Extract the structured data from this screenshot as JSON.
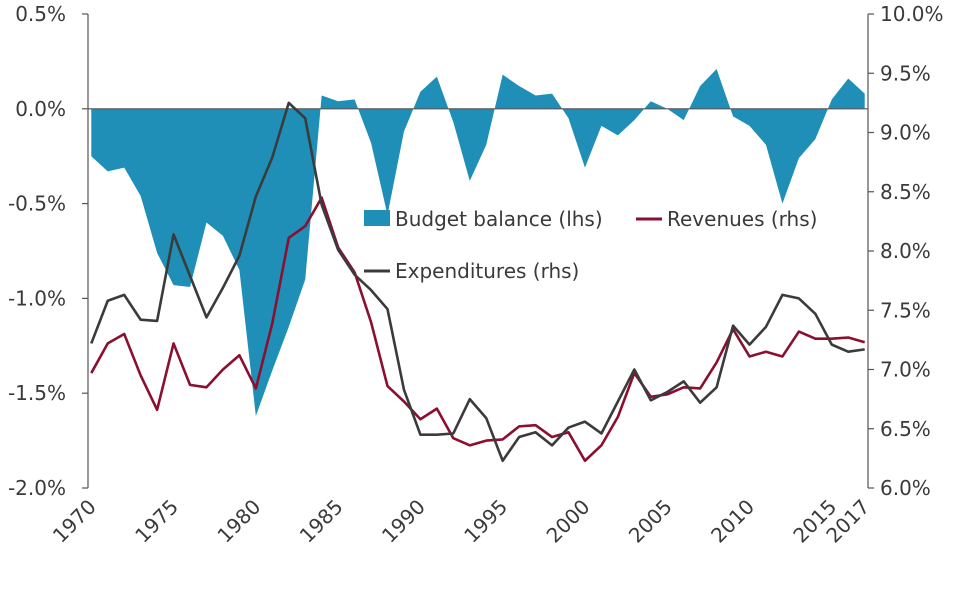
{
  "chart_data": {
    "type": "area+line",
    "title": "",
    "x_label": "",
    "left_axis": {
      "label": "",
      "min": -2.0,
      "max": 0.5,
      "ticks": [
        "0.5%",
        "0.0%",
        "-0.5%",
        "-1.0%",
        "-1.5%",
        "-2.0%"
      ],
      "tick_values": [
        0.5,
        0.0,
        -0.5,
        -1.0,
        -1.5,
        -2.0
      ]
    },
    "right_axis": {
      "label": "",
      "min": 6.0,
      "max": 10.0,
      "ticks": [
        "10.0%",
        "9.5%",
        "9.0%",
        "8.5%",
        "8.0%",
        "7.5%",
        "7.0%",
        "6.5%",
        "6.0%"
      ],
      "tick_values": [
        10.0,
        9.5,
        9.0,
        8.5,
        8.0,
        7.5,
        7.0,
        6.5,
        6.0
      ]
    },
    "x_ticks": [
      "1970",
      "1975",
      "1980",
      "1985",
      "1990",
      "1995",
      "2000",
      "2005",
      "2010",
      "2015",
      "2017"
    ],
    "x_tick_values": [
      1970,
      1975,
      1980,
      1985,
      1990,
      1995,
      2000,
      2005,
      2010,
      2015,
      2017
    ],
    "x_range": [
      1969.8,
      2017.2
    ],
    "legend": {
      "budget": "Budget balance (lhs)",
      "revenues": "Revenues (rhs)",
      "expenditures": "Expenditures (rhs)"
    },
    "colors": {
      "budget": "#1f8fb8",
      "revenues": "#8b0f2f",
      "expenditures": "#3b3b3b",
      "axis": "#555555"
    },
    "years": [
      1970,
      1971,
      1972,
      1973,
      1974,
      1975,
      1976,
      1977,
      1978,
      1979,
      1980,
      1981,
      1982,
      1983,
      1984,
      1985,
      1986,
      1987,
      1988,
      1989,
      1990,
      1991,
      1992,
      1993,
      1994,
      1995,
      1996,
      1997,
      1998,
      1999,
      2000,
      2001,
      2002,
      2003,
      2004,
      2005,
      2006,
      2007,
      2008,
      2009,
      2010,
      2011,
      2012,
      2013,
      2014,
      2015,
      2016,
      2017
    ],
    "series": [
      {
        "name": "Budget balance (lhs)",
        "axis": "left",
        "type": "area",
        "values": [
          -0.25,
          -0.33,
          -0.31,
          -0.46,
          -0.76,
          -0.93,
          -0.94,
          -0.6,
          -0.67,
          -0.85,
          -1.62,
          -1.38,
          -1.15,
          -0.9,
          0.07,
          0.04,
          0.05,
          -0.18,
          -0.56,
          -0.12,
          0.09,
          0.17,
          -0.07,
          -0.38,
          -0.19,
          0.18,
          0.12,
          0.07,
          0.08,
          -0.05,
          -0.31,
          -0.09,
          -0.14,
          -0.06,
          0.04,
          0.0,
          -0.06,
          0.12,
          0.21,
          -0.04,
          -0.09,
          -0.19,
          -0.5,
          -0.26,
          -0.16,
          0.05,
          0.16,
          0.08
        ]
      },
      {
        "name": "Revenues (rhs)",
        "axis": "right",
        "type": "line",
        "values": [
          6.97,
          7.22,
          7.3,
          6.95,
          6.66,
          7.22,
          6.87,
          6.85,
          7.0,
          7.12,
          6.84,
          7.39,
          8.11,
          8.21,
          8.45,
          8.03,
          7.82,
          7.4,
          6.86,
          6.73,
          6.58,
          6.67,
          6.42,
          6.36,
          6.4,
          6.41,
          6.52,
          6.53,
          6.43,
          6.47,
          6.23,
          6.36,
          6.6,
          6.97,
          6.77,
          6.79,
          6.85,
          6.84,
          7.06,
          7.34,
          7.11,
          7.15,
          7.11,
          7.32,
          7.26,
          7.26,
          7.27,
          7.23
        ]
      },
      {
        "name": "Expenditures (rhs)",
        "axis": "right",
        "type": "line",
        "values": [
          7.22,
          7.58,
          7.63,
          7.42,
          7.41,
          8.14,
          7.79,
          7.44,
          7.69,
          7.96,
          8.46,
          8.79,
          9.25,
          9.12,
          8.39,
          8.01,
          7.8,
          7.67,
          7.51,
          6.83,
          6.45,
          6.45,
          6.46,
          6.75,
          6.59,
          6.23,
          6.43,
          6.47,
          6.36,
          6.51,
          6.56,
          6.46,
          6.73,
          7.0,
          6.74,
          6.81,
          6.9,
          6.72,
          6.85,
          7.37,
          7.21,
          7.36,
          7.63,
          7.6,
          7.47,
          7.21,
          7.15,
          7.17
        ]
      }
    ]
  }
}
